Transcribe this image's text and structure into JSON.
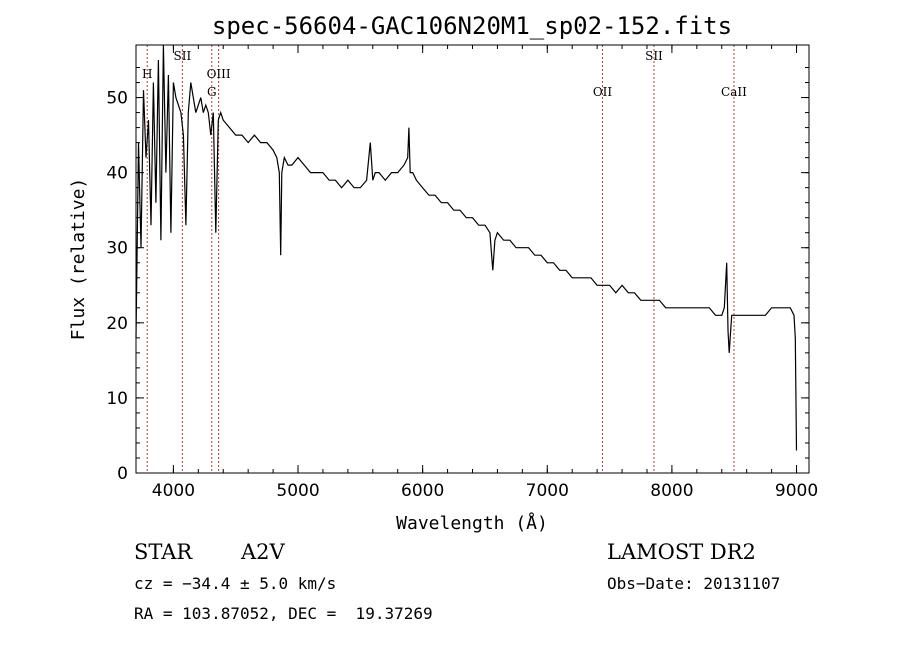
{
  "chart_data": {
    "type": "line",
    "title": "spec-56604-GAC106N20M1_sp02-152.fits",
    "xlabel": "Wavelength (Å)",
    "ylabel": "Flux (relative)",
    "xlim": [
      3700,
      9100
    ],
    "ylim": [
      0,
      57
    ],
    "xticks": [
      "4000",
      "5000",
      "6000",
      "7000",
      "8000",
      "9000"
    ],
    "yticks": [
      "0",
      "10",
      "20",
      "30",
      "40",
      "50"
    ],
    "series": [
      {
        "x": [
          3700,
          3720,
          3740,
          3760,
          3780,
          3800,
          3820,
          3840,
          3860,
          3880,
          3900,
          3920,
          3940,
          3960,
          3980,
          4000,
          4020,
          4040,
          4060,
          4080,
          4100,
          4120,
          4140,
          4160,
          4180,
          4200,
          4220,
          4240,
          4260,
          4280,
          4300,
          4320,
          4340,
          4360,
          4380,
          4400,
          4450,
          4500,
          4550,
          4600,
          4650,
          4700,
          4750,
          4800,
          4830,
          4850,
          4861,
          4870,
          4890,
          4920,
          4950,
          5000,
          5050,
          5100,
          5150,
          5200,
          5250,
          5300,
          5350,
          5400,
          5450,
          5500,
          5550,
          5580,
          5600,
          5620,
          5650,
          5700,
          5750,
          5800,
          5850,
          5880,
          5890,
          5900,
          5920,
          5950,
          6000,
          6050,
          6100,
          6150,
          6200,
          6250,
          6300,
          6350,
          6400,
          6450,
          6500,
          6540,
          6563,
          6580,
          6600,
          6650,
          6700,
          6750,
          6800,
          6850,
          6900,
          6950,
          7000,
          7050,
          7100,
          7150,
          7200,
          7250,
          7300,
          7350,
          7400,
          7450,
          7500,
          7550,
          7600,
          7650,
          7700,
          7750,
          7800,
          7850,
          7900,
          7950,
          8000,
          8050,
          8100,
          8150,
          8200,
          8250,
          8300,
          8350,
          8400,
          8420,
          8440,
          8450,
          8460,
          8480,
          8500,
          8550,
          8600,
          8650,
          8700,
          8750,
          8800,
          8850,
          8900,
          8950,
          8980,
          8990,
          9000
        ],
        "values": [
          18,
          44,
          30,
          51,
          42,
          47,
          33,
          52,
          36,
          55,
          31,
          57,
          40,
          53,
          32,
          52,
          50,
          49,
          48,
          45,
          33,
          48,
          52,
          50,
          48,
          49,
          50,
          48,
          49,
          48,
          45,
          48,
          32,
          47,
          48,
          47,
          46,
          45,
          45,
          44,
          45,
          44,
          44,
          43,
          42,
          40,
          29,
          40,
          42,
          41,
          41,
          42,
          41,
          40,
          40,
          40,
          39,
          39,
          38,
          39,
          38,
          38,
          39,
          44,
          39,
          40,
          40,
          39,
          40,
          40,
          41,
          42,
          46,
          40,
          40,
          39,
          38,
          37,
          37,
          36,
          36,
          35,
          35,
          34,
          34,
          33,
          33,
          32,
          27,
          31,
          32,
          31,
          31,
          30,
          30,
          30,
          29,
          29,
          28,
          28,
          27,
          27,
          26,
          26,
          26,
          26,
          25,
          25,
          25,
          24,
          25,
          24,
          24,
          23,
          23,
          23,
          23,
          22,
          22,
          22,
          22,
          22,
          22,
          22,
          22,
          21,
          21,
          22,
          28,
          19,
          16,
          21,
          21,
          21,
          21,
          21,
          21,
          21,
          22,
          22,
          22,
          22,
          21,
          18,
          3
        ]
      }
    ],
    "lines": [
      {
        "x": 3790,
        "label": "H"
      },
      {
        "x": 4072,
        "label": "SII"
      },
      {
        "x": 4308,
        "label": "G"
      },
      {
        "x": 4363,
        "label": "OIII"
      },
      {
        "x": 7443,
        "label": "OII"
      },
      {
        "x": 7856,
        "label": "SII"
      },
      {
        "x": 8498,
        "label": "CaII"
      }
    ],
    "grid": false
  },
  "info": {
    "object_type": "STAR",
    "subclass": "A2V",
    "survey": "LAMOST DR2",
    "cz": "cz = −34.4 ± 5.0 km/s",
    "obs_date": "Obs−Date: 20131107",
    "coords": "RA = 103.87052, DEC =  19.37269"
  },
  "colors": {
    "spectrum": "#000000",
    "line_markers": "#c0392b",
    "axes": "#000000"
  }
}
